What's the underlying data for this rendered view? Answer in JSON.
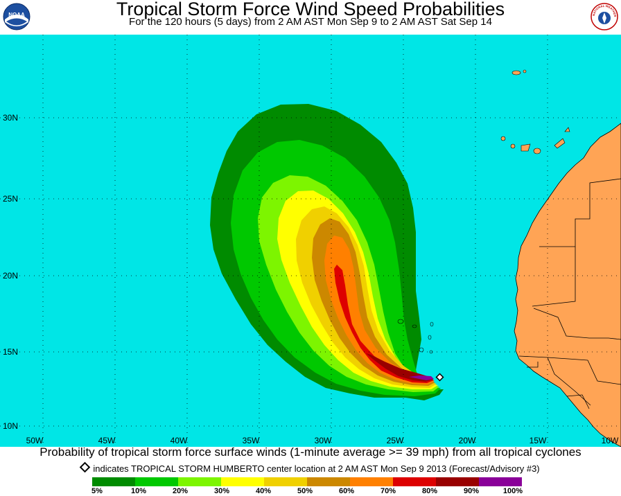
{
  "header": {
    "title": "Tropical Storm Force Wind Speed Probabilities",
    "subtitle": "For the 120 hours (5 days) from 2 AM AST Mon Sep 9 to 2 AM AST Sat Sep 14",
    "left_logo_text": "NOAA",
    "right_logo_text": "NATIONAL WEATHER SERVICE"
  },
  "map": {
    "ocean_color": "#00e6e6",
    "land_color": "#ffa455",
    "lat_labels": [
      "30N",
      "25N",
      "20N",
      "15N",
      "10N"
    ],
    "lon_labels": [
      "50W",
      "45W",
      "40W",
      "35W",
      "30W",
      "25W",
      "20W",
      "15W",
      "10W"
    ]
  },
  "caption": "Probability of tropical storm force surface winds (1-minute average >= 39 mph) from all tropical cyclones",
  "marker_note": "indicates TROPICAL STORM HUMBERTO center location at 2 AM AST Mon Sep 9 2013 (Forecast/Advisory #3)",
  "legend": {
    "colors": [
      "#008b00",
      "#00c800",
      "#7df500",
      "#ffff00",
      "#f0d000",
      "#cc8800",
      "#ff8000",
      "#dd0000",
      "#990000",
      "#8a0099"
    ],
    "labels": [
      "5%",
      "10%",
      "20%",
      "30%",
      "40%",
      "50%",
      "60%",
      "70%",
      "80%",
      "90%",
      "100%"
    ]
  }
}
